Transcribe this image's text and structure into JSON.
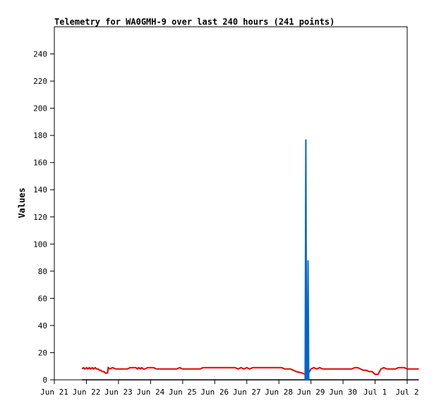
{
  "chart_data": {
    "type": "line",
    "title": "Telemetry for WA0GMH-9 over last 240 hours (241 points)",
    "xlabel": "",
    "ylabel": "Values",
    "ylim": [
      0,
      260
    ],
    "xlim": [
      0,
      240
    ],
    "x_tick_labels": [
      "Jun 21",
      "Jun 22",
      "Jun 23",
      "Jun 24",
      "Jun 25",
      "Jun 26",
      "Jun 27",
      "Jun 28",
      "Jun 29",
      "Jun 30",
      "Jul 1",
      "Jul 2"
    ],
    "x_tick_hours": [
      0,
      22,
      44,
      66,
      88,
      110,
      132,
      154,
      176,
      198,
      220,
      242
    ],
    "y_ticks": [
      0,
      20,
      40,
      60,
      80,
      100,
      120,
      140,
      160,
      180,
      200,
      220,
      240
    ],
    "grid": false,
    "legend": "none",
    "series": [
      {
        "color": "#e00000",
        "x": [
          19,
          20,
          21,
          22,
          23,
          24,
          25,
          26,
          27,
          28,
          29,
          30,
          31,
          32,
          33,
          34,
          35,
          36,
          36.5,
          37,
          38,
          40,
          42,
          44,
          46,
          48,
          50,
          52,
          54,
          56,
          57,
          58,
          59,
          60,
          61,
          62,
          64,
          66,
          68,
          70,
          72,
          74,
          76,
          78,
          80,
          82,
          84,
          86,
          88,
          90,
          92,
          94,
          96,
          98,
          100,
          102,
          104,
          106,
          108,
          110,
          112,
          114,
          116,
          118,
          120,
          122,
          124,
          126,
          128,
          130,
          132,
          134,
          136,
          138,
          140,
          142,
          144,
          146,
          148,
          150,
          152,
          154,
          156,
          158,
          160,
          162,
          164,
          166,
          170,
          172,
          174,
          176,
          178,
          180,
          182,
          184,
          186,
          188,
          190,
          192,
          194,
          196,
          198,
          202,
          204,
          206,
          208,
          210,
          212,
          214,
          216,
          218,
          219,
          220,
          222,
          224,
          226,
          228,
          230,
          232,
          234,
          236,
          238,
          240,
          242,
          244,
          246,
          248,
          250
        ],
        "values": [
          8,
          9,
          8,
          9,
          8,
          9,
          8,
          9,
          8,
          9,
          8,
          8,
          7,
          7,
          6,
          6,
          5,
          5,
          5,
          9,
          8,
          9,
          8,
          8,
          8,
          8,
          8,
          9,
          9,
          9,
          8,
          9,
          8,
          9,
          8,
          8,
          9,
          9,
          9,
          8,
          8,
          8,
          8,
          8,
          8,
          8,
          8,
          9,
          8,
          8,
          8,
          8,
          8,
          8,
          8,
          9,
          9,
          9,
          9,
          9,
          9,
          9,
          9,
          9,
          9,
          9,
          9,
          8,
          9,
          8,
          9,
          8,
          9,
          9,
          9,
          9,
          9,
          9,
          9,
          9,
          9,
          9,
          9,
          8,
          8,
          8,
          7,
          6,
          5,
          4,
          4,
          8,
          9,
          8,
          9,
          8,
          8,
          8,
          8,
          8,
          8,
          8,
          8,
          8,
          8,
          9,
          9,
          8,
          7,
          7,
          6,
          6,
          5,
          4,
          4,
          8,
          9,
          8,
          8,
          8,
          8,
          9,
          9,
          9,
          8,
          8,
          8,
          8,
          8
        ]
      },
      {
        "color": "#000000",
        "x": [
          19,
          250
        ],
        "values": [
          0,
          0
        ]
      },
      {
        "color": "#0066cc",
        "x": [
          172,
          172.5,
          173,
          173.5,
          174,
          174.5
        ],
        "values": [
          0,
          177,
          0,
          0,
          88,
          0
        ]
      }
    ]
  }
}
